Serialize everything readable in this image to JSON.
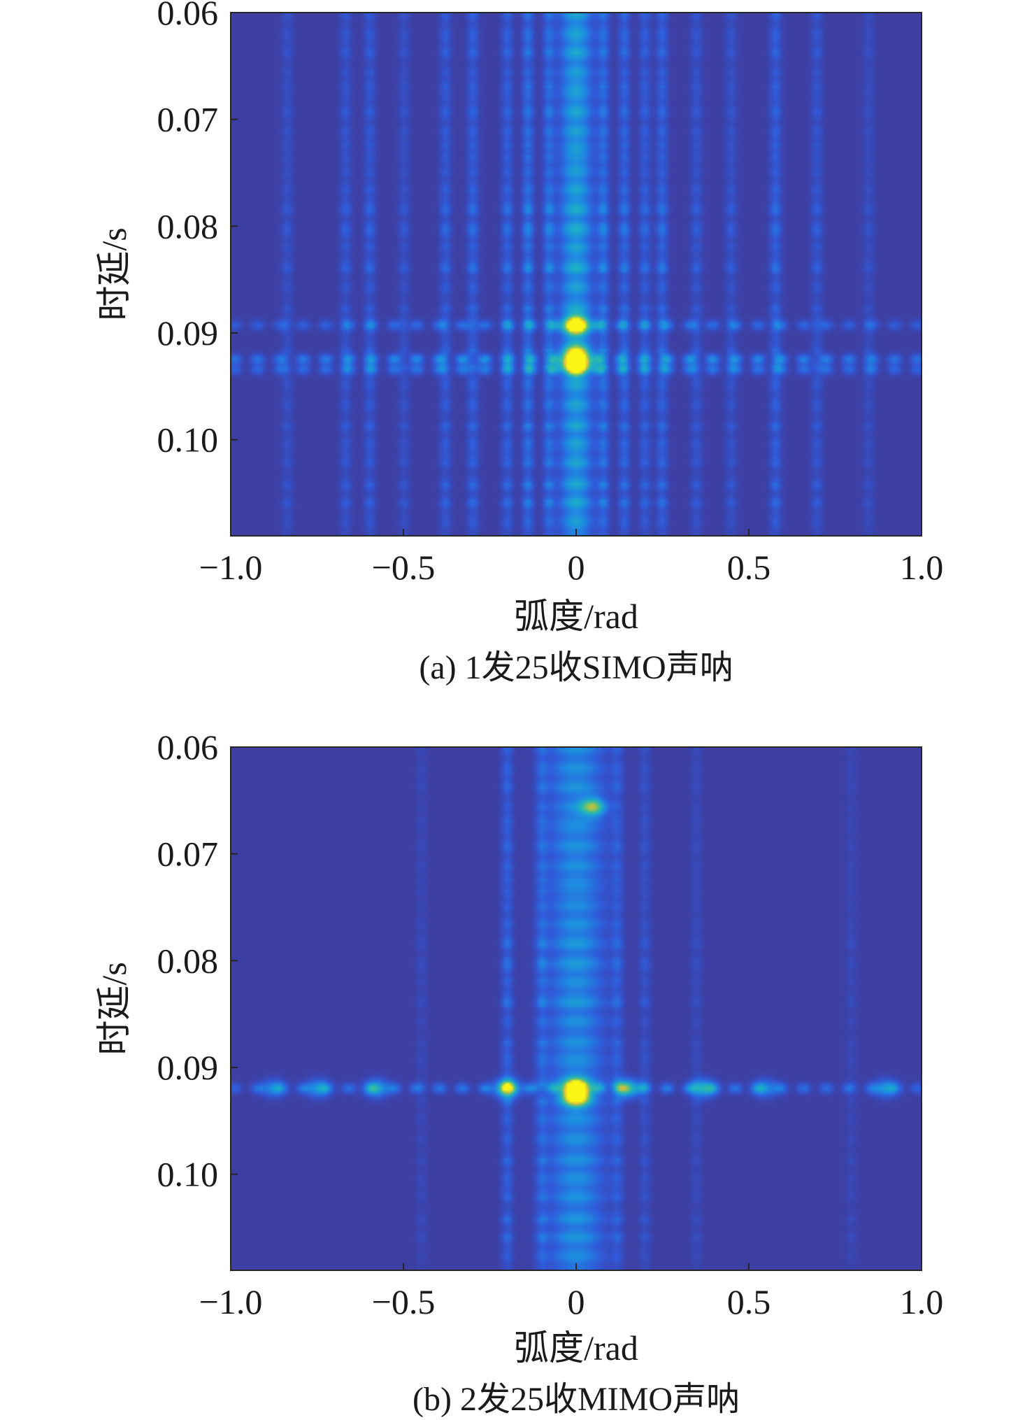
{
  "chart_data": [
    {
      "type": "heatmap",
      "caption": "(a) 1发25收SIMO声呐",
      "xlabel": "弧度/rad",
      "ylabel": "时延/s",
      "xlim": [
        -1.0,
        1.0
      ],
      "ylim": [
        0.06,
        0.109
      ],
      "y_reversed": true,
      "x_ticks": [
        -1.0,
        -0.5,
        0,
        0.5,
        1.0
      ],
      "x_tick_labels": [
        "−1.0",
        "−0.5",
        "0",
        "0.5",
        "1.0"
      ],
      "y_ticks": [
        0.06,
        0.07,
        0.08,
        0.09,
        0.1
      ],
      "y_tick_labels": [
        "0.06",
        "0.07",
        "0.08",
        "0.09",
        "0.10"
      ],
      "colormap": "parula",
      "background_color": "#3e3fa2",
      "main_beam": {
        "x": 0,
        "width": 0.035,
        "level": 0.55
      },
      "side_columns": [
        {
          "x": -0.84,
          "level": 0.18
        },
        {
          "x": -0.67,
          "level": 0.22
        },
        {
          "x": -0.6,
          "level": 0.25
        },
        {
          "x": -0.5,
          "level": 0.18
        },
        {
          "x": -0.38,
          "level": 0.26
        },
        {
          "x": -0.3,
          "level": 0.3
        },
        {
          "x": -0.2,
          "level": 0.3
        },
        {
          "x": -0.14,
          "level": 0.4
        },
        {
          "x": -0.08,
          "level": 0.36
        },
        {
          "x": 0.08,
          "level": 0.36
        },
        {
          "x": 0.14,
          "level": 0.34
        },
        {
          "x": 0.2,
          "level": 0.28
        },
        {
          "x": 0.25,
          "level": 0.32
        },
        {
          "x": 0.35,
          "level": 0.22
        },
        {
          "x": 0.45,
          "level": 0.2
        },
        {
          "x": 0.58,
          "level": 0.3
        },
        {
          "x": 0.7,
          "level": 0.22
        },
        {
          "x": 0.85,
          "level": 0.15
        }
      ],
      "horizontal_bands": [
        {
          "y": 0.0893,
          "level": 0.3
        },
        {
          "y": 0.0925,
          "level": 0.45
        },
        {
          "y": 0.0935,
          "level": 0.35
        }
      ],
      "peaks": [
        {
          "x": 0,
          "y": 0.0893,
          "level": 0.95
        },
        {
          "x": 0,
          "y": 0.093,
          "level": 1.0
        },
        {
          "x": 0,
          "y": 0.0922,
          "level": 0.85
        }
      ]
    },
    {
      "type": "heatmap",
      "caption": "(b) 2发25收MIMO声呐",
      "xlabel": "弧度/rad",
      "ylabel": "时延/s",
      "xlim": [
        -1.0,
        1.0
      ],
      "ylim": [
        0.06,
        0.109
      ],
      "y_reversed": true,
      "x_ticks": [
        -1.0,
        -0.5,
        0,
        0.5,
        1.0
      ],
      "x_tick_labels": [
        "−1.0",
        "−0.5",
        "0",
        "0.5",
        "1.0"
      ],
      "y_ticks": [
        0.06,
        0.07,
        0.08,
        0.09,
        0.1
      ],
      "y_tick_labels": [
        "0.06",
        "0.07",
        "0.08",
        "0.09",
        "0.10"
      ],
      "colormap": "parula",
      "background_color": "#3e3fa2",
      "main_beam": {
        "x": 0,
        "width": 0.06,
        "level": 0.45
      },
      "side_columns": [
        {
          "x": -0.2,
          "level": 0.3
        },
        {
          "x": -0.1,
          "level": 0.25
        },
        {
          "x": -0.45,
          "level": 0.1
        },
        {
          "x": 0.12,
          "level": 0.22
        },
        {
          "x": 0.2,
          "level": 0.18
        },
        {
          "x": 0.35,
          "level": 0.12
        },
        {
          "x": 0.8,
          "level": 0.1
        }
      ],
      "horizontal_bands": [
        {
          "y": 0.092,
          "level": 0.35
        }
      ],
      "peaks": [
        {
          "x": 0,
          "y": 0.092,
          "level": 1.0
        },
        {
          "x": 0,
          "y": 0.0928,
          "level": 0.9
        },
        {
          "x": -0.2,
          "y": 0.092,
          "level": 0.75
        },
        {
          "x": 0.15,
          "y": 0.092,
          "level": 0.6
        },
        {
          "x": 0.05,
          "y": 0.0655,
          "level": 0.6
        },
        {
          "x": 0.37,
          "y": 0.092,
          "level": 0.5
        },
        {
          "x": -0.58,
          "y": 0.092,
          "level": 0.45
        },
        {
          "x": -0.75,
          "y": 0.092,
          "level": 0.4
        },
        {
          "x": -0.88,
          "y": 0.092,
          "level": 0.35
        },
        {
          "x": 0.55,
          "y": 0.092,
          "level": 0.35
        },
        {
          "x": 0.9,
          "y": 0.092,
          "level": 0.4
        }
      ]
    }
  ]
}
